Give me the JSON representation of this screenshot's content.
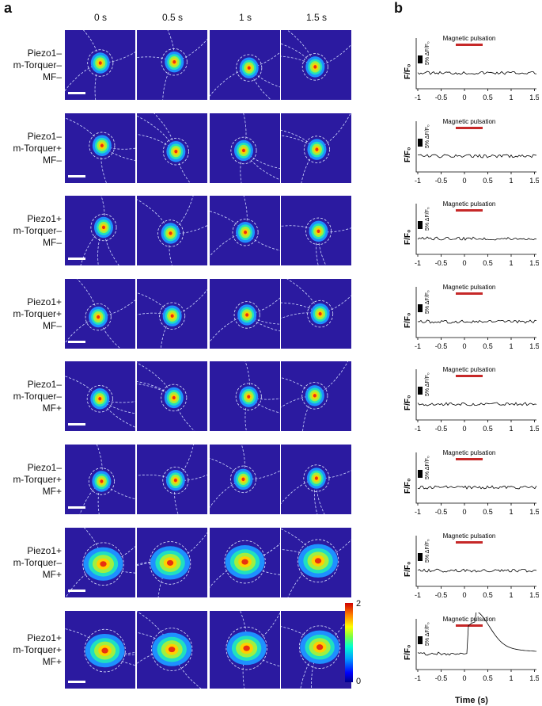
{
  "panel_a": "a",
  "panel_b": "b",
  "time_points": [
    "0 s",
    "0.5 s",
    "1 s",
    "1.5 s"
  ],
  "rows": [
    {
      "label": [
        "Piezo1–",
        "m-Torquer–",
        "MF–"
      ]
    },
    {
      "label": [
        "Piezo1–",
        "m-Torquer+",
        "MF–"
      ]
    },
    {
      "label": [
        "Piezo1+",
        "m-Torquer–",
        "MF–"
      ]
    },
    {
      "label": [
        "Piezo1+",
        "m-Torquer+",
        "MF–"
      ]
    },
    {
      "label": [
        "Piezo1–",
        "m-Torquer–",
        "MF+"
      ]
    },
    {
      "label": [
        "Piezo1–",
        "m-Torquer+",
        "MF+"
      ]
    },
    {
      "label": [
        "Piezo1+",
        "m-Torquer–",
        "MF+"
      ]
    },
    {
      "label": [
        "Piezo1+",
        "m-Torquer+",
        "MF+"
      ]
    }
  ],
  "colorbar": {
    "max": "2",
    "min": "0"
  },
  "trace": {
    "ylabel": "F/F₀",
    "scale_label": "5% ΔF/F₀",
    "stim_label": "Magnetic pulsation",
    "stim_color": "#c62828",
    "xticks": [
      "-1",
      "-0.5",
      "0",
      "0.5",
      "1",
      "1.5"
    ],
    "xlabel": "Time (s)"
  }
}
